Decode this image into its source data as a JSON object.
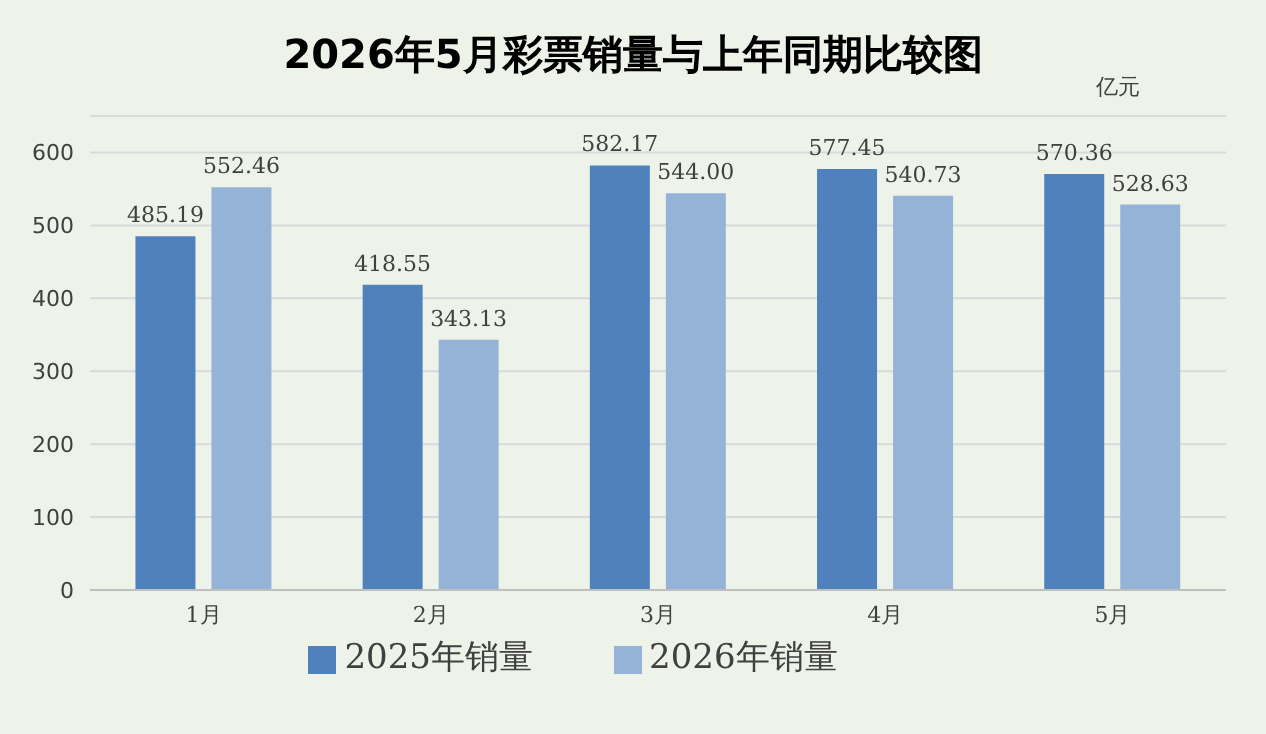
{
  "chart_data": {
    "type": "bar",
    "title": "2026年5月彩票销量与上年同期比较图",
    "ylabel": "亿元",
    "categories": [
      "1月",
      "2月",
      "3月",
      "4月",
      "5月"
    ],
    "series": [
      {
        "name": "2025年销量",
        "color": "#4f81bd",
        "values": [
          485.19,
          418.55,
          582.17,
          577.45,
          570.36
        ],
        "value_labels": [
          "485.19",
          "418.55",
          "582.17",
          "577.45",
          "570.36"
        ]
      },
      {
        "name": "2026年销量",
        "color": "#95b3d7",
        "values": [
          552.46,
          343.13,
          544.0,
          540.73,
          528.63
        ],
        "value_labels": [
          "552.46",
          "343.13",
          "544.00",
          "540.73",
          "528.63"
        ]
      }
    ],
    "ylim": [
      0,
      650
    ],
    "yticks": [
      0,
      100,
      200,
      300,
      400,
      500,
      600
    ],
    "grid": "y",
    "legend": "bottom"
  }
}
